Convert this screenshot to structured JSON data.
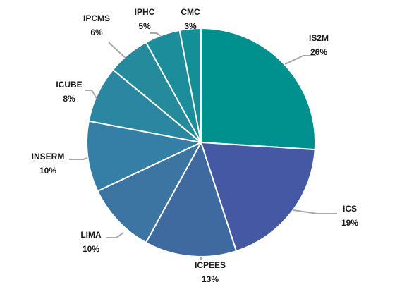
{
  "chart_data": {
    "type": "pie",
    "slices": [
      {
        "label": "IS2M",
        "percent_label": "26%",
        "value": 26,
        "color": "#00918f"
      },
      {
        "label": "ICS",
        "percent_label": "19%",
        "value": 19,
        "color": "#4458a3"
      },
      {
        "label": "ICPEES",
        "percent_label": "13%",
        "value": 13,
        "color": "#3f6aa0"
      },
      {
        "label": "LIMA",
        "percent_label": "10%",
        "value": 10,
        "color": "#3c74a2"
      },
      {
        "label": "INSERM",
        "percent_label": "10%",
        "value": 10,
        "color": "#357ea5"
      },
      {
        "label": "ICUBE",
        "percent_label": "8%",
        "value": 8,
        "color": "#2b86a1"
      },
      {
        "label": "IPCMS",
        "percent_label": "6%",
        "value": 6,
        "color": "#248a9c"
      },
      {
        "label": "IPHC",
        "percent_label": "5%",
        "value": 5,
        "color": "#1c8d9a"
      },
      {
        "label": "CMC",
        "percent_label": "3%",
        "value": 3,
        "color": "#128f97"
      }
    ],
    "legend": "none",
    "labels": "outside with leader lines"
  }
}
